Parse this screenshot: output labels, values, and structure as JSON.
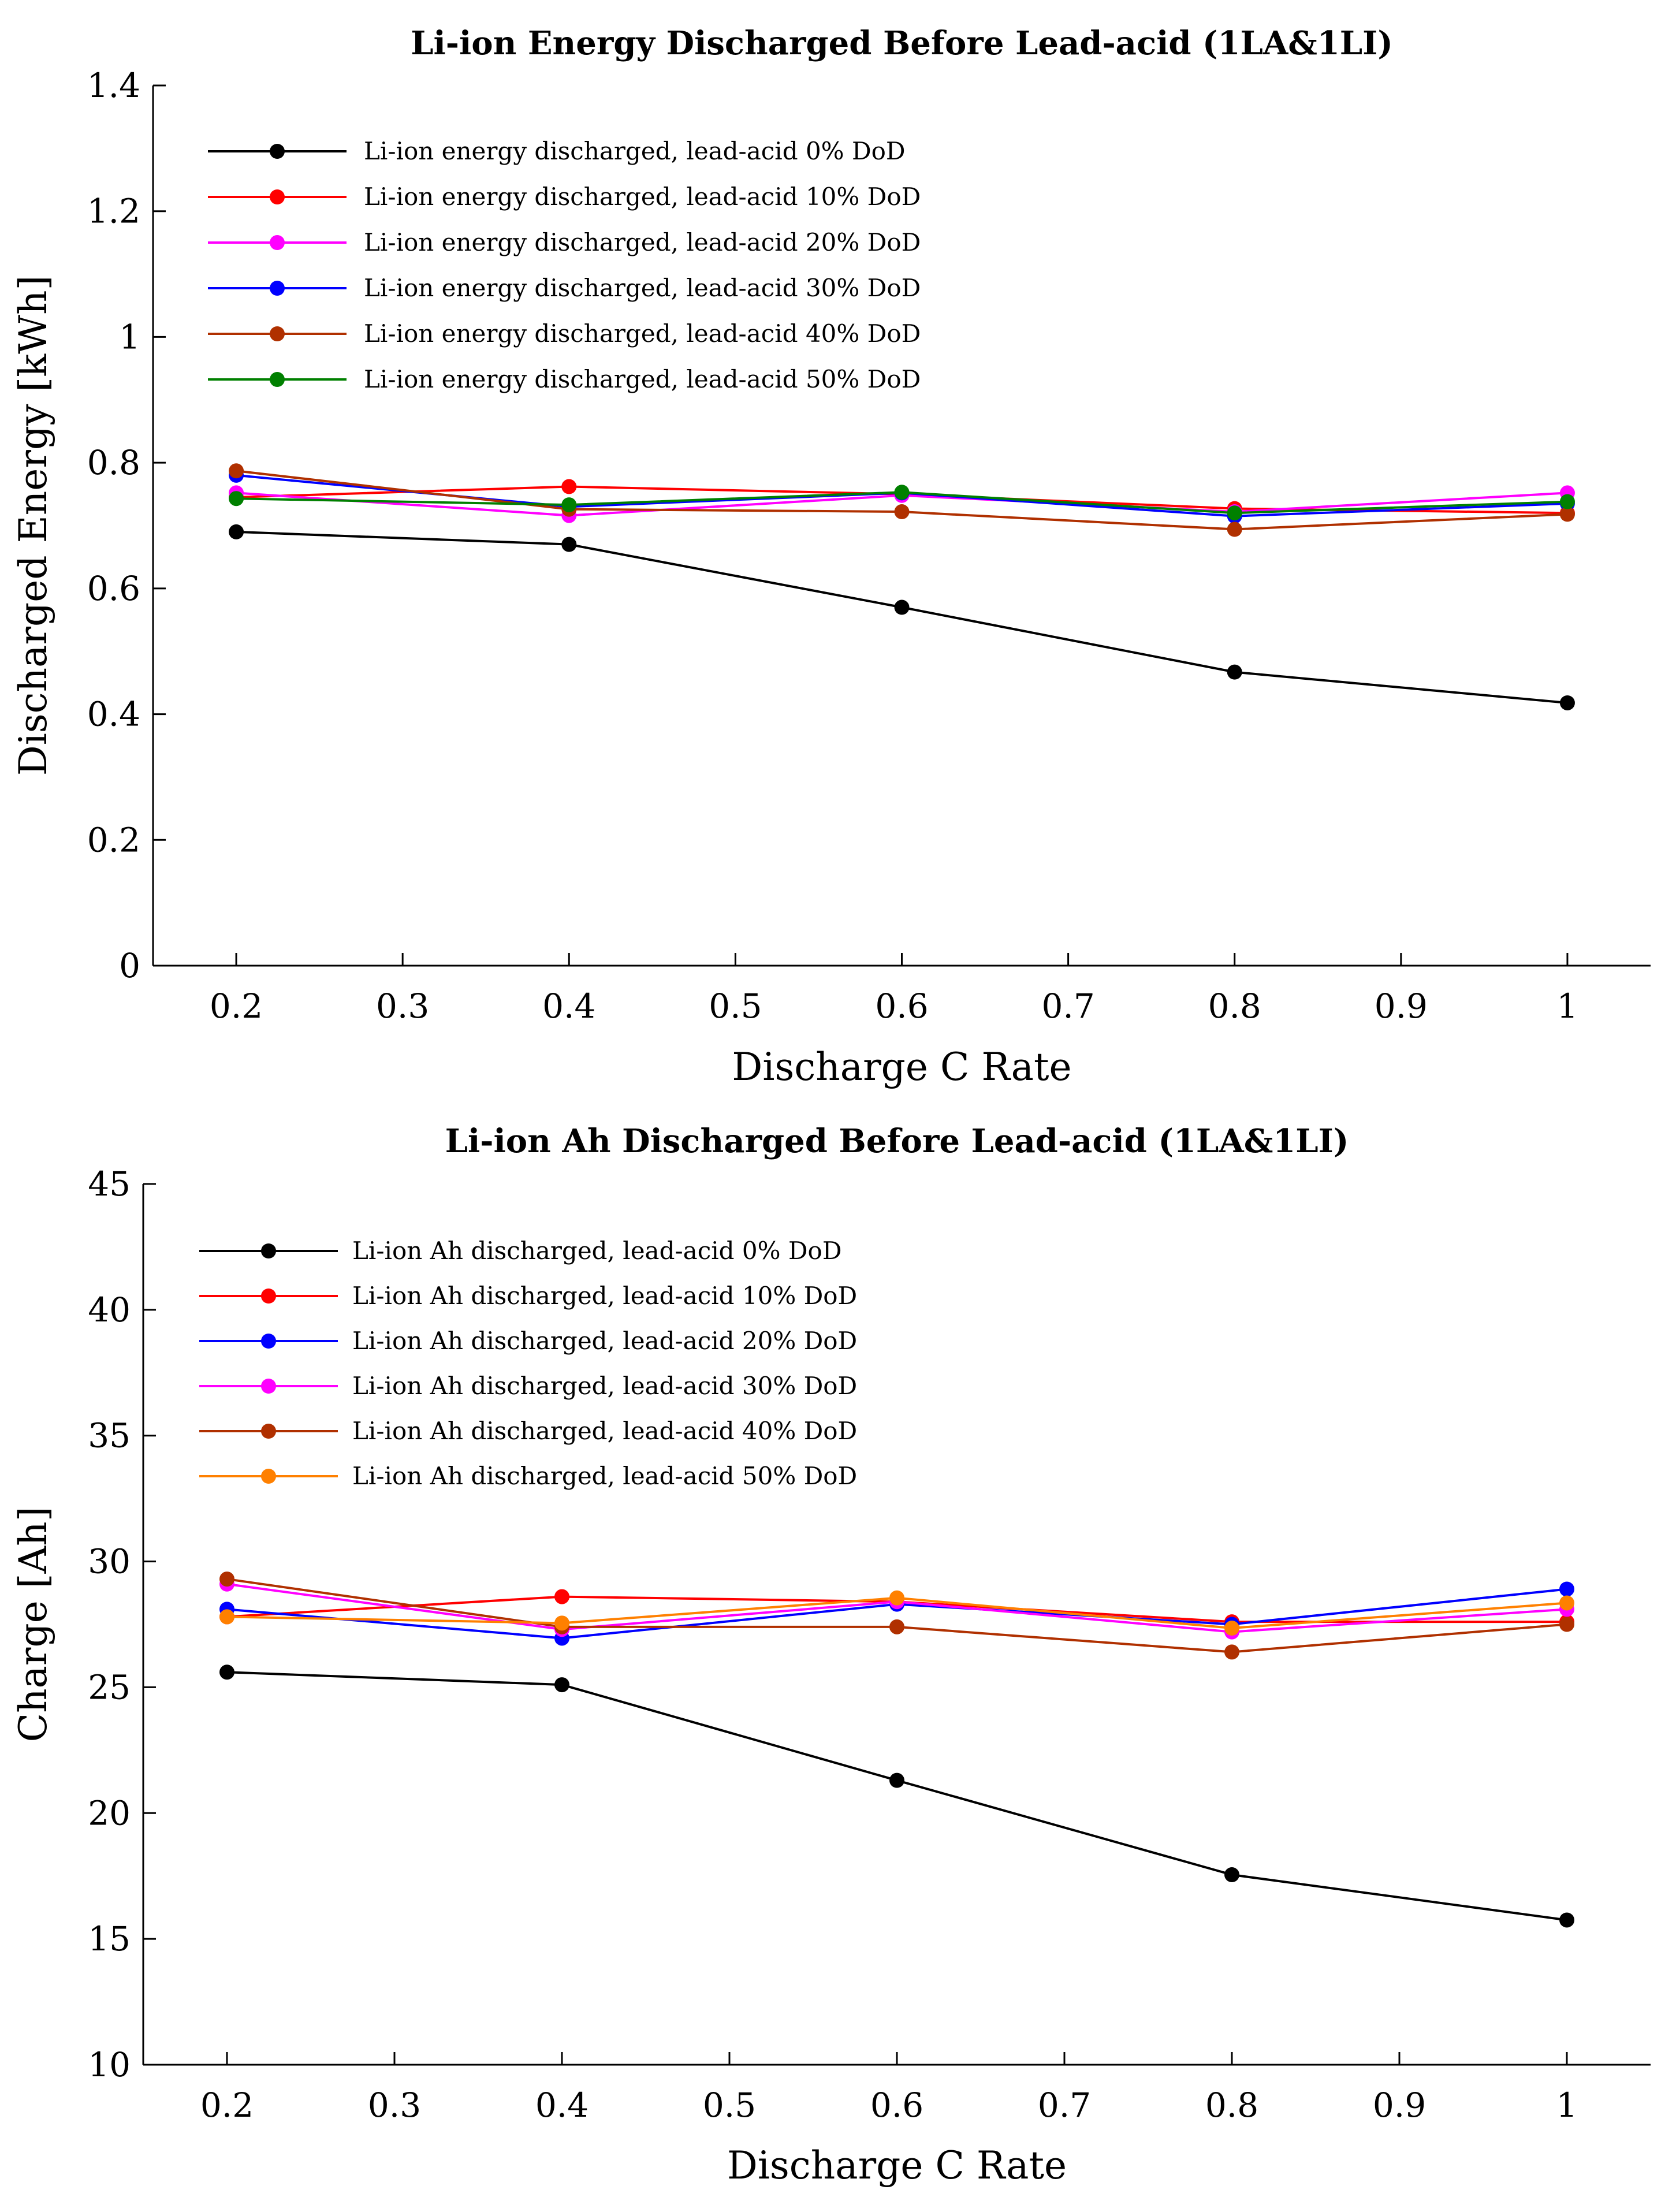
{
  "chart_data": [
    {
      "type": "line",
      "title": "Li-ion Energy Discharged Before Lead-acid (1LA&1LI)",
      "xlabel": "Discharge C Rate",
      "ylabel": "Discharged Energy [kWh]",
      "xlim": [
        0.15,
        1.05
      ],
      "ylim": [
        0,
        1.4
      ],
      "xticks": [
        0.2,
        0.3,
        0.4,
        0.5,
        0.6,
        0.7,
        0.8,
        0.9,
        1
      ],
      "xtick_labels": [
        "0.2",
        "0.3",
        "0.4",
        "0.5",
        "0.6",
        "0.7",
        "0.8",
        "0.9",
        "1"
      ],
      "yticks": [
        0,
        0.2,
        0.4,
        0.6,
        0.8,
        1,
        1.2,
        1.4
      ],
      "ytick_labels": [
        "0",
        "0.2",
        "0.4",
        "0.6",
        "0.8",
        "1",
        "1.2",
        "1.4"
      ],
      "grid": false,
      "legend_position": "top-left",
      "x": [
        0.2,
        0.4,
        0.6,
        0.8,
        1
      ],
      "series": [
        {
          "name": "Li-ion energy discharged, lead-acid 0% DoD",
          "color": "#000000",
          "values": [
            0.69,
            0.67,
            0.57,
            0.467,
            0.418
          ]
        },
        {
          "name": "Li-ion energy discharged, lead-acid 10% DoD",
          "color": "#ff0000",
          "values": [
            0.745,
            0.762,
            0.75,
            0.727,
            0.72
          ]
        },
        {
          "name": "Li-ion energy discharged, lead-acid 20% DoD",
          "color": "#ff00ff",
          "values": [
            0.752,
            0.716,
            0.748,
            0.722,
            0.752
          ]
        },
        {
          "name": "Li-ion energy discharged, lead-acid 30% DoD",
          "color": "#0000ff",
          "values": [
            0.78,
            0.73,
            0.752,
            0.715,
            0.735
          ]
        },
        {
          "name": "Li-ion energy discharged, lead-acid 40% DoD",
          "color": "#b03000",
          "values": [
            0.787,
            0.726,
            0.722,
            0.694,
            0.718
          ]
        },
        {
          "name": "Li-ion energy discharged, lead-acid 50% DoD",
          "color": "#008000",
          "values": [
            0.743,
            0.733,
            0.753,
            0.72,
            0.738
          ]
        }
      ]
    },
    {
      "type": "line",
      "title": "Li-ion Ah  Discharged Before Lead-acid (1LA&1LI)",
      "xlabel": "Discharge C Rate",
      "ylabel": "Charge [Ah]",
      "xlim": [
        0.15,
        1.05
      ],
      "ylim": [
        10,
        45
      ],
      "xticks": [
        0.2,
        0.3,
        0.4,
        0.5,
        0.6,
        0.7,
        0.8,
        0.9,
        1
      ],
      "xtick_labels": [
        "0.2",
        "0.3",
        "0.4",
        "0.5",
        "0.6",
        "0.7",
        "0.8",
        "0.9",
        "1"
      ],
      "yticks": [
        10,
        15,
        20,
        25,
        30,
        35,
        40,
        45
      ],
      "ytick_labels": [
        "10",
        "15",
        "20",
        "25",
        "30",
        "35",
        "40",
        "45"
      ],
      "grid": false,
      "legend_position": "top-left",
      "x": [
        0.2,
        0.4,
        0.6,
        0.8,
        1
      ],
      "series": [
        {
          "name": "Li-ion Ah discharged, lead-acid 0% DoD",
          "color": "#000000",
          "values": [
            25.6,
            25.1,
            21.3,
            17.55,
            15.75
          ]
        },
        {
          "name": "Li-ion Ah discharged, lead-acid 10% DoD",
          "color": "#ff0000",
          "values": [
            27.8,
            28.6,
            28.4,
            27.6,
            27.6
          ]
        },
        {
          "name": "Li-ion Ah discharged, lead-acid 20% DoD",
          "color": "#0000ff",
          "values": [
            28.1,
            26.95,
            28.3,
            27.5,
            28.9
          ]
        },
        {
          "name": "Li-ion Ah discharged, lead-acid 30% DoD",
          "color": "#ff00ff",
          "values": [
            29.1,
            27.3,
            28.4,
            27.2,
            28.1
          ]
        },
        {
          "name": "Li-ion Ah discharged, lead-acid 40% DoD",
          "color": "#b03000",
          "values": [
            29.3,
            27.4,
            27.4,
            26.4,
            27.5
          ]
        },
        {
          "name": "Li-ion Ah discharged, lead-acid 50% DoD",
          "color": "#ff8000",
          "values": [
            27.8,
            27.55,
            28.55,
            27.35,
            28.35
          ]
        }
      ]
    }
  ]
}
